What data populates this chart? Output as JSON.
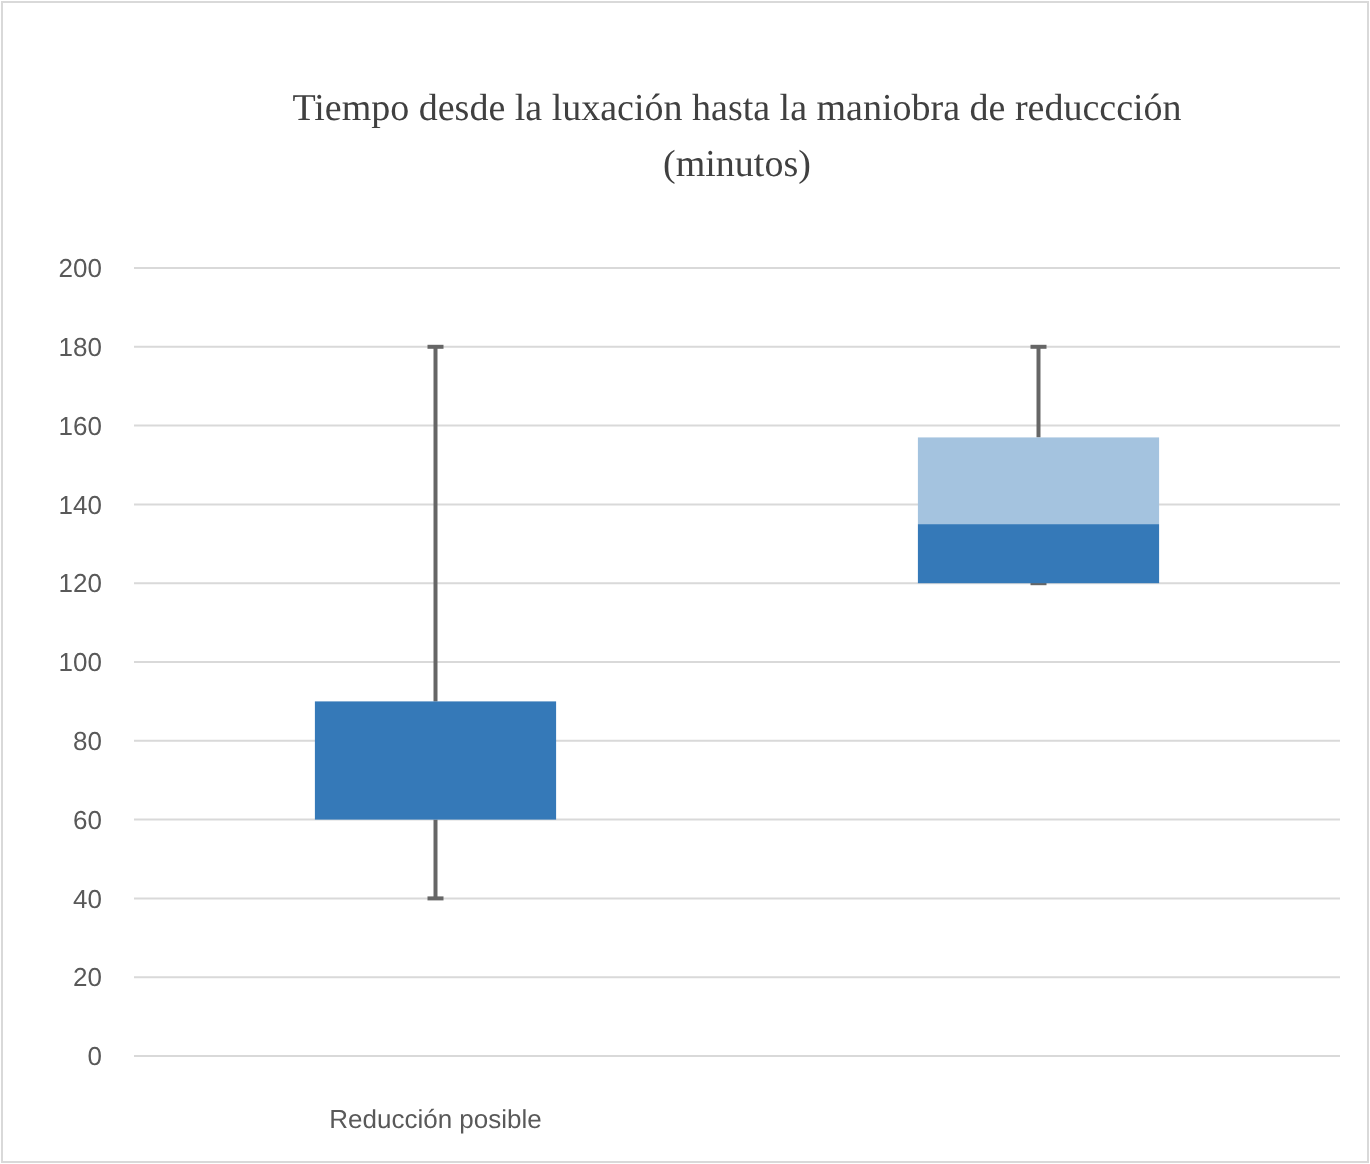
{
  "chart_data": {
    "type": "box",
    "title": "Tiempo desde la luxación hasta la maniobra de reduccción\n(minutos)",
    "categories": [
      "Reducción posible",
      null
    ],
    "series": [
      {
        "color": "#3579b8",
        "boxes": [
          {
            "low": 40,
            "q1": 60,
            "median": 90,
            "q3": 90,
            "high": 180
          },
          {
            "low": 120,
            "q1": 120,
            "median": 135,
            "q3": 157,
            "high": 180
          }
        ]
      }
    ],
    "ylim": [
      0,
      200
    ],
    "yticks": [
      0,
      20,
      40,
      60,
      80,
      100,
      120,
      140,
      160,
      180,
      200
    ],
    "grid": "y"
  }
}
